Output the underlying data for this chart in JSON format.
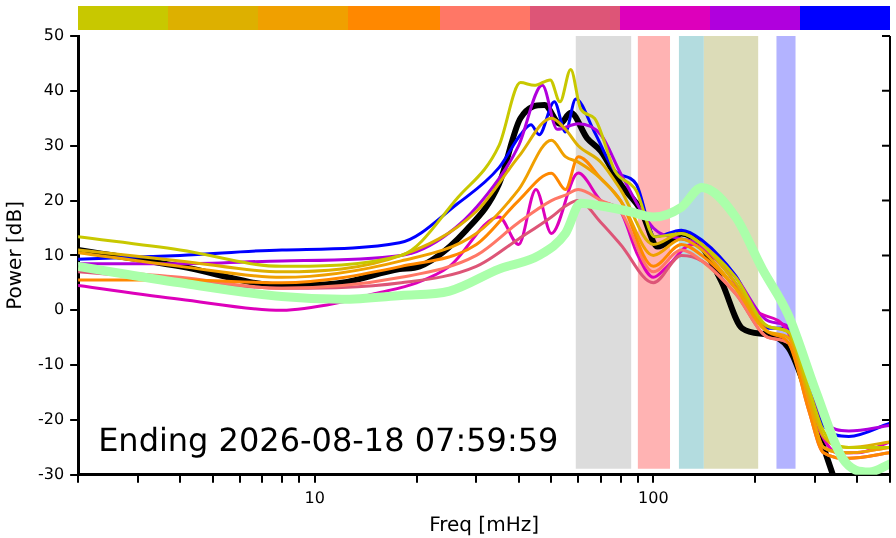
{
  "chart_data": {
    "type": "line",
    "xlabel": "Freq [mHz]",
    "ylabel": "Power [dB]",
    "log": "x",
    "grid": false,
    "legend": false,
    "marker": "none",
    "line_style": "solid",
    "xlim": [
      2,
      500
    ],
    "xticks": [
      {
        "value": 2,
        "label": null
      },
      {
        "value": 3,
        "label": null
      },
      {
        "value": 4,
        "label": null
      },
      {
        "value": 5,
        "label": null
      },
      {
        "value": 6,
        "label": null
      },
      {
        "value": 7,
        "label": null
      },
      {
        "value": 8,
        "label": null
      },
      {
        "value": 9,
        "label": null
      },
      10,
      {
        "value": 20,
        "label": null
      },
      {
        "value": 30,
        "label": null
      },
      {
        "value": 40,
        "label": null
      },
      {
        "value": 50,
        "label": null
      },
      {
        "value": 60,
        "label": null
      },
      {
        "value": 70,
        "label": null
      },
      {
        "value": 80,
        "label": null
      },
      {
        "value": 90,
        "label": null
      },
      100,
      {
        "value": 200,
        "label": null
      },
      {
        "value": 300,
        "label": null
      },
      {
        "value": 400,
        "label": null
      },
      {
        "value": 500,
        "label": null
      }
    ],
    "ylim": [
      -30,
      50
    ],
    "yticks": [
      -30,
      -20,
      -10,
      0,
      10,
      20,
      30,
      40,
      50
    ],
    "annotations": [
      "Ending 2026-08-18 07:59:59"
    ],
    "bands": [
      {
        "axis": "x",
        "from": 59,
        "to": 86,
        "color": "#dcdcdc"
      },
      {
        "axis": "x",
        "from": 90,
        "to": 112,
        "color": "#ffb3b3"
      },
      {
        "axis": "x",
        "from": 119,
        "to": 141,
        "color": "#b3dcdf"
      },
      {
        "axis": "x",
        "from": 141,
        "to": 204,
        "color": "#dcdcb8"
      },
      {
        "axis": "x",
        "from": 231,
        "to": 263,
        "color": "#b3b3ff"
      }
    ],
    "series": [
      {
        "color": "#aaffaa",
        "x": [
          2,
          4,
          8,
          12,
          18,
          25,
          35,
          46,
          55,
          61,
          70,
          85,
          100,
          121,
          139,
          175,
          210,
          251,
          303,
          362,
          434,
          500
        ],
        "values": [
          8,
          5,
          2.5,
          2,
          2.7,
          3.5,
          7.5,
          10,
          14,
          19.5,
          19,
          18,
          17,
          18.8,
          22.4,
          17,
          7.5,
          -1,
          -15,
          -27,
          -29.5,
          -28
        ]
      },
      {
        "color": "#c8c800",
        "x": [
          2,
          4,
          8,
          18,
          26.5,
          35,
          40.5,
          44.5,
          49.6,
          53,
          57,
          61,
          67,
          77,
          89,
          101,
          121,
          139,
          175,
          219,
          251,
          287,
          318,
          378,
          500
        ],
        "values": [
          13.4,
          11,
          8,
          10,
          20.6,
          30,
          41.5,
          41,
          42,
          38,
          43.9,
          36.7,
          35,
          25.4,
          21.8,
          13.4,
          14,
          12,
          6,
          -3,
          -4,
          -14,
          -22,
          -25,
          -25
        ]
      },
      {
        "color": "#ddb000",
        "x": [
          2,
          4,
          8,
          18,
          30,
          40,
          50,
          55,
          60,
          70,
          80,
          100,
          121,
          139,
          175,
          219,
          251,
          287,
          318,
          378,
          500
        ],
        "values": [
          11,
          9,
          7,
          10,
          18,
          28,
          35,
          33,
          30,
          27,
          22,
          12,
          14,
          12,
          5,
          -3,
          -4,
          -15,
          -23,
          -25,
          -24
        ]
      },
      {
        "color": "#f0a000",
        "x": [
          2,
          4,
          8,
          18,
          30,
          40,
          50,
          55,
          60,
          70,
          80,
          100,
          121,
          139,
          175,
          219,
          251,
          287,
          318,
          378,
          500
        ],
        "values": [
          10.5,
          8,
          6,
          9,
          14,
          22,
          31,
          28,
          27,
          24,
          20,
          10,
          13,
          11,
          4,
          -4,
          -5,
          -16,
          -25,
          -26,
          -25
        ]
      },
      {
        "color": "#ff8800",
        "x": [
          2,
          4,
          8,
          18,
          30,
          40,
          50,
          55,
          60,
          70,
          80,
          100,
          121,
          139,
          175,
          219,
          251,
          287,
          318,
          378,
          500
        ],
        "values": [
          5.5,
          5.5,
          5,
          8,
          12,
          20,
          25,
          22,
          28,
          24,
          20,
          8,
          12,
          10,
          4,
          -4,
          -6,
          -18,
          -26,
          -27,
          -26
        ]
      },
      {
        "color": "#ff7766",
        "x": [
          2,
          4,
          8,
          18,
          30,
          40,
          50,
          55,
          60,
          70,
          80,
          100,
          121,
          139,
          175,
          219,
          251,
          287,
          318,
          378,
          500
        ],
        "values": [
          7.5,
          6,
          4,
          6,
          10,
          16,
          20,
          21,
          22,
          20,
          18,
          7,
          11,
          9,
          3,
          -5,
          -6,
          -17,
          -25,
          -26,
          -25
        ]
      },
      {
        "color": "#dd5577",
        "x": [
          2,
          4,
          8,
          18,
          30,
          40,
          50,
          55,
          60,
          70,
          80,
          100,
          121,
          139,
          175,
          219,
          251,
          287,
          318,
          378,
          500
        ],
        "values": [
          7,
          5.5,
          4,
          5,
          8,
          13,
          17,
          19,
          20,
          16,
          12,
          5,
          10,
          9,
          3,
          -5,
          -6,
          -18,
          -26,
          -27,
          -26
        ]
      },
      {
        "color": "#dd00bb",
        "x": [
          2,
          4,
          8,
          12,
          15,
          20,
          25,
          35,
          40,
          45,
          50,
          60,
          70,
          80,
          90,
          100,
          110,
          130,
          160,
          200,
          250,
          300,
          350,
          400,
          500
        ],
        "values": [
          4.5,
          2,
          0,
          1.5,
          3,
          5,
          8,
          17,
          12,
          22,
          14,
          25,
          20,
          18,
          10,
          6,
          8,
          12,
          8,
          0,
          -4,
          -20,
          -26,
          -26,
          -24
        ]
      },
      {
        "color": "#b000dd",
        "x": [
          2,
          4,
          8,
          18,
          26,
          35,
          40,
          47,
          52,
          60,
          70,
          80,
          100,
          121,
          139,
          175,
          219,
          251,
          287,
          318,
          378,
          500
        ],
        "values": [
          8.5,
          8.5,
          9,
          10,
          15,
          24,
          30,
          41,
          33,
          34,
          32,
          25,
          15,
          13,
          12,
          6,
          -2,
          -3,
          -12,
          -20,
          -22,
          -21
        ]
      },
      {
        "color": "#0000ff",
        "x": [
          2,
          4,
          8,
          17.8,
          26.5,
          35,
          40.5,
          43.5,
          46,
          51,
          55,
          59,
          67,
          77,
          89,
          101,
          121,
          139,
          175,
          219,
          251,
          287,
          318,
          378,
          500
        ],
        "values": [
          9.3,
          10,
          11,
          12.3,
          19.5,
          26,
          32,
          33.8,
          32,
          38,
          32.5,
          38.5,
          32.5,
          25.4,
          23,
          13.4,
          14.6,
          12.8,
          6.3,
          -3.3,
          -3.3,
          -12.8,
          -21,
          -23,
          -20.6
        ]
      },
      {
        "color": "#000000",
        "x": [
          2,
          4,
          8.1,
          12,
          17.8,
          20.4,
          28,
          35,
          40.5,
          47.7,
          53,
          57,
          63.7,
          70,
          80,
          92,
          103,
          116,
          121,
          139,
          159,
          183,
          219,
          251,
          276,
          303,
          339
        ],
        "values": [
          11,
          8,
          4.5,
          5,
          7.5,
          8,
          14.6,
          23,
          35,
          37.4,
          34,
          36,
          31.4,
          29,
          23,
          18.2,
          11.6,
          13.4,
          14,
          11.6,
          5.2,
          -3.3,
          -4.5,
          -6.9,
          -12.8,
          -21,
          -30
        ]
      }
    ]
  }
}
